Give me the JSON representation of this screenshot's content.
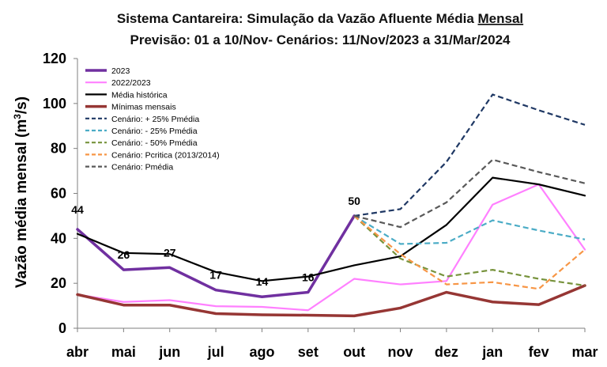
{
  "chart_data": {
    "type": "line",
    "title_line1_prefix": "Sistema Cantareira: Simulação da Vazão Afluente Média ",
    "title_line1_underlined": "Mensal",
    "title_line2": "Previsão: 01 a 10/Nov- Cenários: 11/Nov/2023 a 31/Mar/2024",
    "ylabel_prefix": "Vazão média mensal (m",
    "ylabel_sup": "3",
    "ylabel_suffix": "/s)",
    "xlabel": "",
    "ylim": [
      0,
      120
    ],
    "yticks": [
      "0",
      "20",
      "40",
      "60",
      "80",
      "100",
      "120"
    ],
    "categories": [
      "abr",
      "mai",
      "jun",
      "jul",
      "ago",
      "set",
      "out",
      "nov",
      "dez",
      "jan",
      "fev",
      "mar"
    ],
    "legend_position": "top-left",
    "series": [
      {
        "name": "2023",
        "color": "#7030a0",
        "style": "solid",
        "width": "thick",
        "values": [
          44,
          26,
          27,
          17,
          14,
          16,
          50,
          null,
          null,
          null,
          null,
          null
        ],
        "labels": [
          "44",
          "26",
          "27",
          "17",
          "14",
          "16",
          "50",
          null,
          null,
          null,
          null,
          null
        ]
      },
      {
        "name": "2022/2023",
        "color": "#ff80ff",
        "style": "solid",
        "width": "normal",
        "values": [
          15,
          11.7,
          12.5,
          9.8,
          9.5,
          8,
          22,
          19.5,
          21,
          55,
          64,
          35
        ]
      },
      {
        "name": "Média histórica",
        "color": "#000000",
        "style": "solid",
        "width": "normal",
        "values": [
          42,
          33.5,
          33,
          25,
          21,
          23,
          28,
          32,
          46,
          67,
          64,
          59
        ]
      },
      {
        "name": "Mínimas mensais",
        "color": "#963634",
        "style": "solid",
        "width": "thick",
        "values": [
          15,
          10.3,
          10.3,
          6.5,
          6,
          5.8,
          5.5,
          9,
          16,
          11.7,
          10.5,
          19
        ]
      },
      {
        "name": "Cenário: + 25% Pmédia",
        "color": "#1f3864",
        "style": "dashed",
        "width": "normal",
        "values": [
          null,
          null,
          null,
          null,
          null,
          null,
          50,
          53,
          74,
          104,
          97,
          90.5
        ]
      },
      {
        "name": "Cenário: - 25% Pmédia",
        "color": "#4bacc6",
        "style": "dashed",
        "width": "normal",
        "values": [
          null,
          null,
          null,
          null,
          null,
          null,
          50,
          37.5,
          38,
          48,
          43.5,
          39.5
        ]
      },
      {
        "name": "Cenário: - 50% Pmédia",
        "color": "#77933c",
        "style": "dashed",
        "width": "normal",
        "values": [
          null,
          null,
          null,
          null,
          null,
          null,
          50,
          31,
          23,
          26,
          22,
          19
        ]
      },
      {
        "name": "Cenário: Pcritica (2013/2014)",
        "color": "#f79646",
        "style": "dashed",
        "width": "normal",
        "values": [
          null,
          null,
          null,
          null,
          null,
          null,
          50,
          33,
          19.5,
          20.5,
          17.5,
          35
        ]
      },
      {
        "name": "Cenário: Pmédia",
        "color": "#595959",
        "style": "dashed",
        "width": "normal",
        "values": [
          null,
          null,
          null,
          null,
          null,
          null,
          50,
          45,
          56,
          75,
          69.5,
          64.5
        ]
      }
    ]
  }
}
